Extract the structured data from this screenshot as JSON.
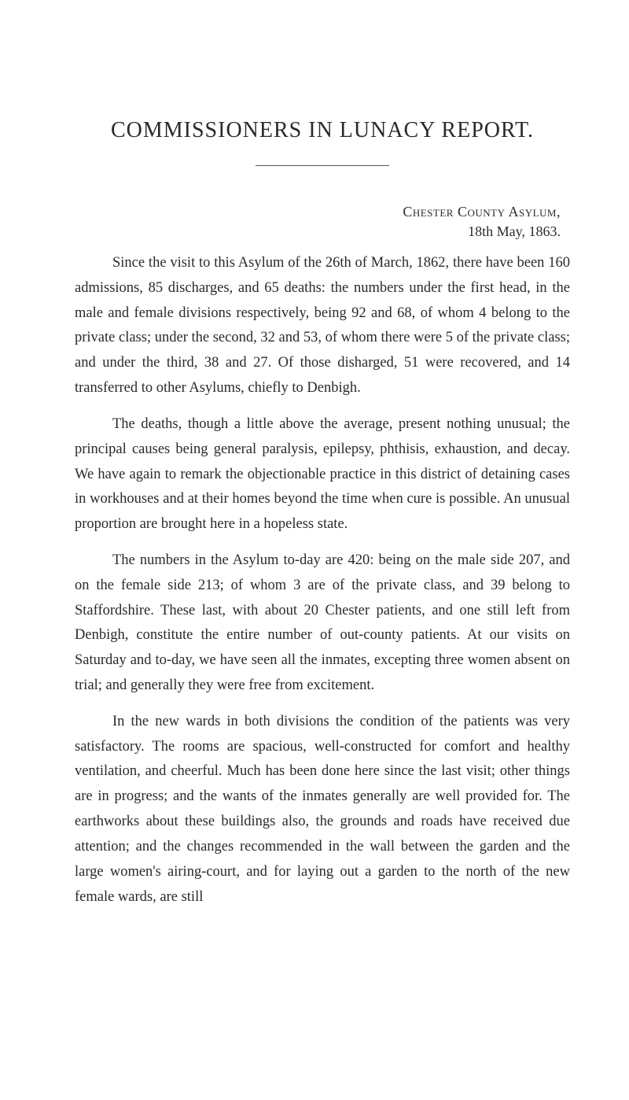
{
  "title": "COMMISSIONERS IN LUNACY REPORT.",
  "subhead": "Chester County Asylum,",
  "dateline": "18th May, 1863.",
  "paragraphs": {
    "p1": "Since the visit to this Asylum of the 26th of March, 1862, there have been 160 admissions, 85 discharges, and 65 deaths: the numbers under the first head, in the male and female divisions respectively, being 92 and 68, of whom 4 belong to the private class; under the second, 32 and 53, of whom there were 5 of the private class; and under the third, 38 and 27. Of those disharged, 51 were recovered, and 14 transferred to other Asylums, chiefly to Denbigh.",
    "p2": "The deaths, though a little above the average, present nothing unusual; the principal causes being general paralysis, epilepsy, phthisis, exhaustion, and decay. We have again to remark the objectionable practice in this district of detaining cases in work­houses and at their homes beyond the time when cure is possible. An unusual proportion are brought here in a hopeless state.",
    "p3": "The numbers in the Asylum to-day are 420: being on the male side 207, and on the female side 213; of whom 3 are of the private class, and 39 belong to Staffordshire. These last, with about 20 Chester patients, and one still left from Denbigh, constitute the entire number of out-county patients. At our visits on Saturday and to-day, we have seen all the inmates, excepting three women absent on trial; and generally they were free from excitement.",
    "p4": "In the new wards in both divisions the condition of the patients was very satisfactory. The rooms are spacious, well-constructed for comfort and healthy ventilation, and cheerful. Much has been done here since the last visit; other things are in progress; and the wants of the inmates generally are well provided for. The earth­works about these buildings also, the grounds and roads have received due attention; and the changes recommended in the wall between the garden and the large women's airing-court, and for laying out a garden to the north of the new female wards, are still"
  }
}
